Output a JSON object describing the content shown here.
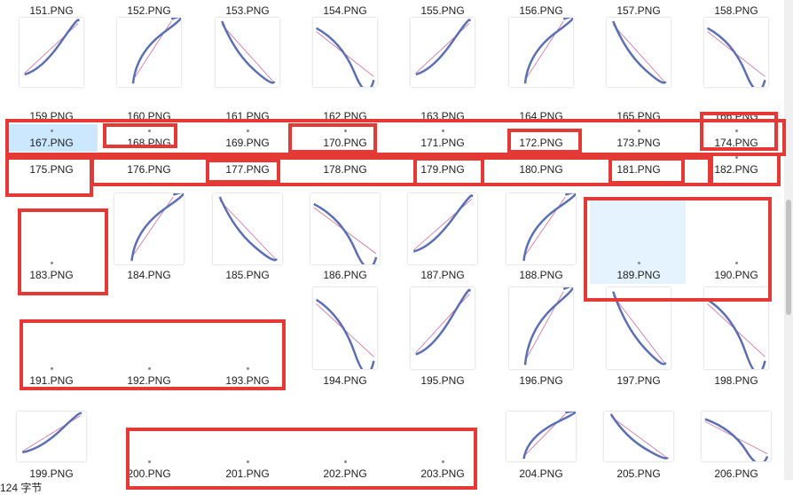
{
  "files": [
    {
      "name": "151.PNG",
      "thumb": false
    },
    {
      "name": "152.PNG",
      "thumb": false
    },
    {
      "name": "153.PNG",
      "thumb": false
    },
    {
      "name": "154.PNG",
      "thumb": false
    },
    {
      "name": "155.PNG",
      "thumb": false
    },
    {
      "name": "156.PNG",
      "thumb": false
    },
    {
      "name": "157.PNG",
      "thumb": false
    },
    {
      "name": "158.PNG",
      "thumb": false
    },
    {
      "name": "159.PNG",
      "thumb": true
    },
    {
      "name": "160.PNG",
      "thumb": true
    },
    {
      "name": "161.PNG",
      "thumb": true
    },
    {
      "name": "162.PNG",
      "thumb": true
    },
    {
      "name": "163.PNG",
      "thumb": true
    },
    {
      "name": "164.PNG",
      "thumb": true
    },
    {
      "name": "165.PNG",
      "thumb": true
    },
    {
      "name": "166.PNG",
      "thumb": true
    },
    {
      "name": "167.PNG",
      "thumb": false
    },
    {
      "name": "168.PNG",
      "thumb": false
    },
    {
      "name": "169.PNG",
      "thumb": false
    },
    {
      "name": "170.PNG",
      "thumb": false
    },
    {
      "name": "171.PNG",
      "thumb": false
    },
    {
      "name": "172.PNG",
      "thumb": false
    },
    {
      "name": "173.PNG",
      "thumb": false
    },
    {
      "name": "174.PNG",
      "thumb": false
    },
    {
      "name": "175.PNG",
      "thumb": false
    },
    {
      "name": "176.PNG",
      "thumb": false
    },
    {
      "name": "177.PNG",
      "thumb": false
    },
    {
      "name": "178.PNG",
      "thumb": false
    },
    {
      "name": "179.PNG",
      "thumb": false
    },
    {
      "name": "180.PNG",
      "thumb": false
    },
    {
      "name": "181.PNG",
      "thumb": false
    },
    {
      "name": "182.PNG",
      "thumb": false
    },
    {
      "name": "183.PNG",
      "thumb": false
    },
    {
      "name": "184.PNG",
      "thumb": true
    },
    {
      "name": "185.PNG",
      "thumb": true
    },
    {
      "name": "186.PNG",
      "thumb": true
    },
    {
      "name": "187.PNG",
      "thumb": true
    },
    {
      "name": "188.PNG",
      "thumb": true
    },
    {
      "name": "189.PNG",
      "thumb": false
    },
    {
      "name": "190.PNG",
      "thumb": false
    },
    {
      "name": "191.PNG",
      "thumb": false
    },
    {
      "name": "192.PNG",
      "thumb": false
    },
    {
      "name": "193.PNG",
      "thumb": false
    },
    {
      "name": "194.PNG",
      "thumb": true
    },
    {
      "name": "195.PNG",
      "thumb": true
    },
    {
      "name": "196.PNG",
      "thumb": true
    },
    {
      "name": "197.PNG",
      "thumb": true
    },
    {
      "name": "198.PNG",
      "thumb": true
    },
    {
      "name": "199.PNG",
      "thumb": true
    },
    {
      "name": "200.PNG",
      "thumb": false
    },
    {
      "name": "201.PNG",
      "thumb": false
    },
    {
      "name": "202.PNG",
      "thumb": false
    },
    {
      "name": "203.PNG",
      "thumb": false
    },
    {
      "name": "204.PNG",
      "thumb": true
    },
    {
      "name": "205.PNG",
      "thumb": true
    },
    {
      "name": "206.PNG",
      "thumb": true
    }
  ],
  "status": {
    "text": "124 字节"
  },
  "colors": {
    "highlight": "#e53935",
    "selection": "#cce8ff",
    "hover": "#e5f3ff",
    "curve_blue": "#5b6fb5",
    "curve_pink": "#d46aa0"
  }
}
